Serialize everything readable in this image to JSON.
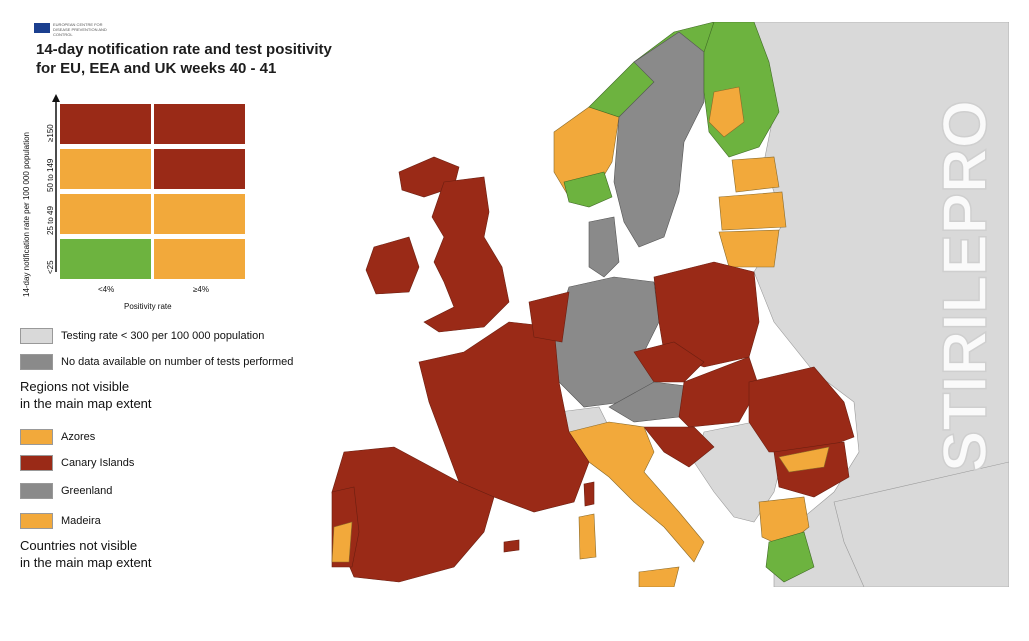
{
  "header": {
    "logo_text": "EUROPEAN CENTRE FOR DISEASE PREVENTION AND CONTROL",
    "title_line1": "14-day notification rate and test positivity",
    "title_line2": "for EU, EEA and UK weeks 40 - 41"
  },
  "matrix": {
    "y_axis_label": "14-day notification rate per 100 000 population",
    "x_axis_label": "Positivity rate",
    "rows": [
      "≥150",
      "50 to 149",
      "25 to 49",
      "<25"
    ],
    "columns": [
      "<4%",
      "≥4%"
    ],
    "cells": [
      [
        "red",
        "red"
      ],
      [
        "orange",
        "red"
      ],
      [
        "orange",
        "orange"
      ],
      [
        "green",
        "orange"
      ]
    ]
  },
  "legend": {
    "testing_low": "Testing rate < 300 per 100 000 population",
    "no_data": "No data available on number of tests performed",
    "regions_heading_1": "Regions not visible",
    "regions_heading_2": "in the main map extent",
    "regions": [
      {
        "label": "Azores",
        "color": "orange"
      },
      {
        "label": "Canary Islands",
        "color": "red"
      },
      {
        "label": "Greenland",
        "color": "darkgrey"
      },
      {
        "label": "Madeira",
        "color": "orange"
      }
    ],
    "countries_heading_1": "Countries not visible",
    "countries_heading_2": "in the main map extent"
  },
  "colors": {
    "red": "#9a2a17",
    "orange": "#f2a93b",
    "green": "#6db33f",
    "darkgrey": "#8a8a8a",
    "lightgrey": "#d9d9d9",
    "sea": "#ffffff"
  },
  "map_regions": [
    {
      "name": "Iceland",
      "category": "red"
    },
    {
      "name": "Ireland",
      "category": "red"
    },
    {
      "name": "United Kingdom",
      "category": "red"
    },
    {
      "name": "Norway",
      "category": "orange/green"
    },
    {
      "name": "Sweden",
      "category": "darkgrey"
    },
    {
      "name": "Finland",
      "category": "green/orange"
    },
    {
      "name": "Estonia",
      "category": "orange"
    },
    {
      "name": "Latvia",
      "category": "orange"
    },
    {
      "name": "Lithuania",
      "category": "orange"
    },
    {
      "name": "Denmark",
      "category": "darkgrey"
    },
    {
      "name": "Germany",
      "category": "darkgrey"
    },
    {
      "name": "Poland",
      "category": "red"
    },
    {
      "name": "Czechia",
      "category": "red"
    },
    {
      "name": "Austria",
      "category": "darkgrey"
    },
    {
      "name": "Hungary",
      "category": "red"
    },
    {
      "name": "Romania",
      "category": "red"
    },
    {
      "name": "Bulgaria",
      "category": "orange/red"
    },
    {
      "name": "Greece",
      "category": "orange/green"
    },
    {
      "name": "Italy",
      "category": "orange"
    },
    {
      "name": "France",
      "category": "red"
    },
    {
      "name": "Spain",
      "category": "red"
    },
    {
      "name": "Portugal",
      "category": "red/orange"
    },
    {
      "name": "Switzerland",
      "category": "lightgrey"
    }
  ],
  "watermark": "STIRILEPRO"
}
